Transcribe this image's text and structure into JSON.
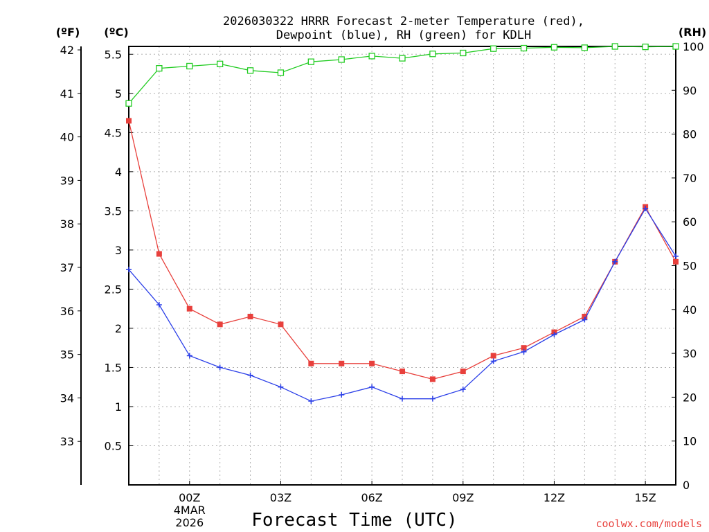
{
  "chart_data": {
    "type": "line",
    "title_line1": "2026030322 HRRR Forecast 2-meter Temperature (red),",
    "title_line2": "Dewpoint (blue), RH (green) for KDLH",
    "xlabel": "Forecast Time (UTC)",
    "credit": "coolwx.com/models",
    "unit_f": "(ºF)",
    "unit_c": "(ºC)",
    "unit_rh": "(RH)",
    "x_hours": [
      -2,
      -1,
      0,
      1,
      2,
      3,
      4,
      5,
      6,
      7,
      8,
      9,
      10,
      11,
      12,
      13,
      14,
      15,
      16
    ],
    "x_range": [
      -2,
      16
    ],
    "x_ticks": [
      {
        "hour": 0,
        "label": "00Z",
        "sub1": "4MAR",
        "sub2": "2026"
      },
      {
        "hour": 3,
        "label": "03Z",
        "sub1": "",
        "sub2": ""
      },
      {
        "hour": 6,
        "label": "06Z",
        "sub1": "",
        "sub2": ""
      },
      {
        "hour": 9,
        "label": "09Z",
        "sub1": "",
        "sub2": ""
      },
      {
        "hour": 12,
        "label": "12Z",
        "sub1": "",
        "sub2": ""
      },
      {
        "hour": 15,
        "label": "15Z",
        "sub1": "",
        "sub2": ""
      }
    ],
    "c_range": [
      0.0,
      5.6
    ],
    "c_ticks": [
      "0.5",
      "1",
      "1.5",
      "2",
      "2.5",
      "3",
      "3.5",
      "4",
      "4.5",
      "5",
      "5.5"
    ],
    "f_ticks": [
      "33",
      "34",
      "35",
      "36",
      "37",
      "38",
      "39",
      "40",
      "41",
      "42"
    ],
    "rh_range": [
      0,
      100
    ],
    "rh_ticks": [
      "0",
      "10",
      "20",
      "30",
      "40",
      "50",
      "60",
      "70",
      "80",
      "90",
      "100"
    ],
    "series": [
      {
        "name": "Temperature",
        "color": "#e8403c",
        "marker": "square-filled",
        "axis": "C",
        "values": [
          4.65,
          2.95,
          2.25,
          2.05,
          2.15,
          2.05,
          1.55,
          1.55,
          1.55,
          1.45,
          1.35,
          1.45,
          1.65,
          1.75,
          1.95,
          2.15,
          2.85,
          3.55,
          2.85
        ]
      },
      {
        "name": "Dewpoint",
        "color": "#2a3ee8",
        "marker": "plus",
        "axis": "C",
        "values": [
          2.75,
          2.3,
          1.65,
          1.5,
          1.4,
          1.25,
          1.07,
          1.15,
          1.25,
          1.1,
          1.1,
          1.22,
          1.58,
          1.7,
          1.92,
          2.11,
          2.85,
          3.53,
          2.92
        ]
      },
      {
        "name": "RH",
        "color": "#22cc22",
        "marker": "square-open",
        "axis": "RH",
        "values": [
          87,
          95,
          95.5,
          96,
          94.5,
          94,
          96.5,
          97,
          97.8,
          97.3,
          98.3,
          98.5,
          99.5,
          99.6,
          99.8,
          99.7,
          100,
          99.9,
          100
        ]
      }
    ]
  }
}
